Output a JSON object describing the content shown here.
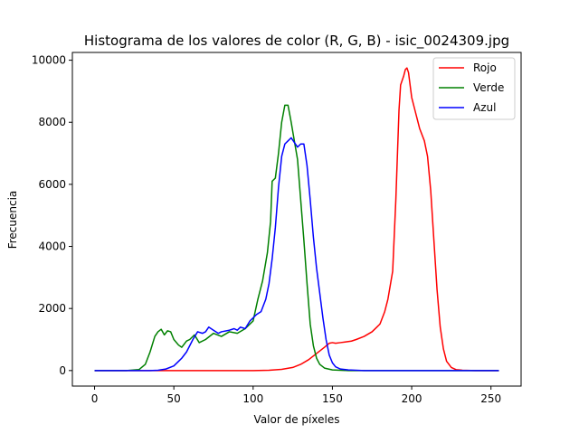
{
  "chart_data": {
    "type": "line",
    "title": "Histograma de los valores de color (R, G, B) - isic_0024309.jpg",
    "xlabel": "Valor de píxeles",
    "ylabel": "Frecuencia",
    "xlim": [
      -14,
      269
    ],
    "ylim": [
      -500,
      10250
    ],
    "xticks": [
      0,
      50,
      100,
      150,
      200,
      250
    ],
    "yticks": [
      0,
      2000,
      4000,
      6000,
      8000,
      10000
    ],
    "grid": false,
    "legend_position": "top-right",
    "series": [
      {
        "name": "Rojo",
        "color": "#ff0000",
        "x": [
          0,
          80,
          100,
          110,
          118,
          125,
          130,
          135,
          140,
          145,
          148,
          150,
          152,
          155,
          158,
          162,
          165,
          170,
          175,
          178,
          180,
          183,
          185,
          188,
          190,
          192,
          193,
          195,
          196,
          197,
          198,
          199,
          200,
          202,
          205,
          208,
          210,
          212,
          214,
          216,
          218,
          220,
          222,
          225,
          228,
          232,
          240,
          255
        ],
        "y": [
          0,
          0,
          0,
          10,
          40,
          100,
          200,
          350,
          550,
          750,
          880,
          900,
          880,
          900,
          920,
          950,
          1000,
          1100,
          1250,
          1400,
          1500,
          1900,
          2300,
          3200,
          5500,
          8400,
          9200,
          9500,
          9700,
          9750,
          9600,
          9200,
          8800,
          8400,
          7800,
          7400,
          6900,
          5800,
          4200,
          2600,
          1400,
          700,
          300,
          100,
          30,
          10,
          0,
          0
        ]
      },
      {
        "name": "Verde",
        "color": "#008000",
        "x": [
          0,
          20,
          28,
          32,
          35,
          38,
          40,
          42,
          44,
          46,
          48,
          50,
          53,
          55,
          58,
          60,
          63,
          66,
          70,
          75,
          80,
          85,
          90,
          95,
          100,
          103,
          106,
          109,
          111,
          112,
          114,
          116,
          118,
          120,
          122,
          124,
          126,
          128,
          130,
          132,
          134,
          136,
          138,
          140,
          142,
          145,
          150,
          160,
          170,
          180,
          255
        ],
        "y": [
          0,
          0,
          30,
          200,
          600,
          1100,
          1250,
          1330,
          1150,
          1280,
          1250,
          1000,
          820,
          750,
          950,
          1000,
          1150,
          900,
          1000,
          1200,
          1100,
          1250,
          1200,
          1350,
          1600,
          2300,
          2900,
          3800,
          4800,
          6100,
          6200,
          7000,
          8000,
          8550,
          8550,
          8000,
          7400,
          6800,
          5500,
          4200,
          2800,
          1500,
          800,
          400,
          200,
          80,
          20,
          0,
          0,
          0,
          0
        ]
      },
      {
        "name": "Azul",
        "color": "#0000ff",
        "x": [
          0,
          35,
          40,
          45,
          50,
          53,
          55,
          58,
          60,
          62,
          65,
          68,
          70,
          72,
          75,
          78,
          80,
          85,
          88,
          90,
          92,
          95,
          98,
          100,
          102,
          105,
          108,
          110,
          112,
          114,
          116,
          118,
          120,
          122,
          124,
          126,
          128,
          130,
          132,
          134,
          136,
          138,
          140,
          142,
          144,
          146,
          148,
          150,
          152,
          155,
          160,
          170,
          255
        ],
        "y": [
          0,
          0,
          10,
          50,
          150,
          300,
          400,
          600,
          800,
          1000,
          1250,
          1200,
          1250,
          1400,
          1300,
          1200,
          1250,
          1300,
          1350,
          1300,
          1400,
          1350,
          1600,
          1700,
          1800,
          1900,
          2300,
          2800,
          3600,
          4600,
          5900,
          6900,
          7300,
          7400,
          7500,
          7350,
          7200,
          7300,
          7300,
          6600,
          5500,
          4300,
          3300,
          2500,
          1700,
          1000,
          500,
          250,
          120,
          50,
          20,
          0,
          0
        ]
      }
    ]
  }
}
